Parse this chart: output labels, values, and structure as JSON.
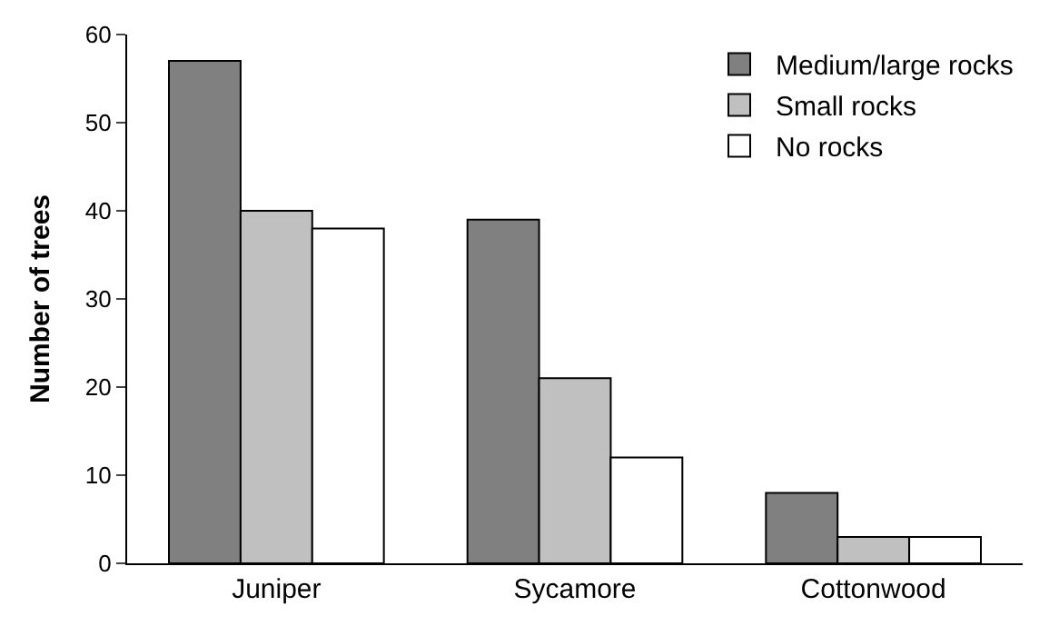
{
  "chart_data": {
    "type": "bar",
    "ylabel": "Number of trees",
    "categories": [
      "Juniper",
      "Sycamore",
      "Cottonwood"
    ],
    "series": [
      {
        "name": "Medium/large rocks",
        "color": "#808080",
        "values": [
          57,
          39,
          8
        ]
      },
      {
        "name": "Small rocks",
        "color": "#c0c0c0",
        "values": [
          40,
          21,
          3
        ]
      },
      {
        "name": "No rocks",
        "color": "#ffffff",
        "values": [
          38,
          12,
          3
        ]
      }
    ],
    "ylim": [
      0,
      60
    ],
    "yticks": [
      0,
      10,
      20,
      30,
      40,
      50,
      60
    ],
    "legend": "top right"
  }
}
